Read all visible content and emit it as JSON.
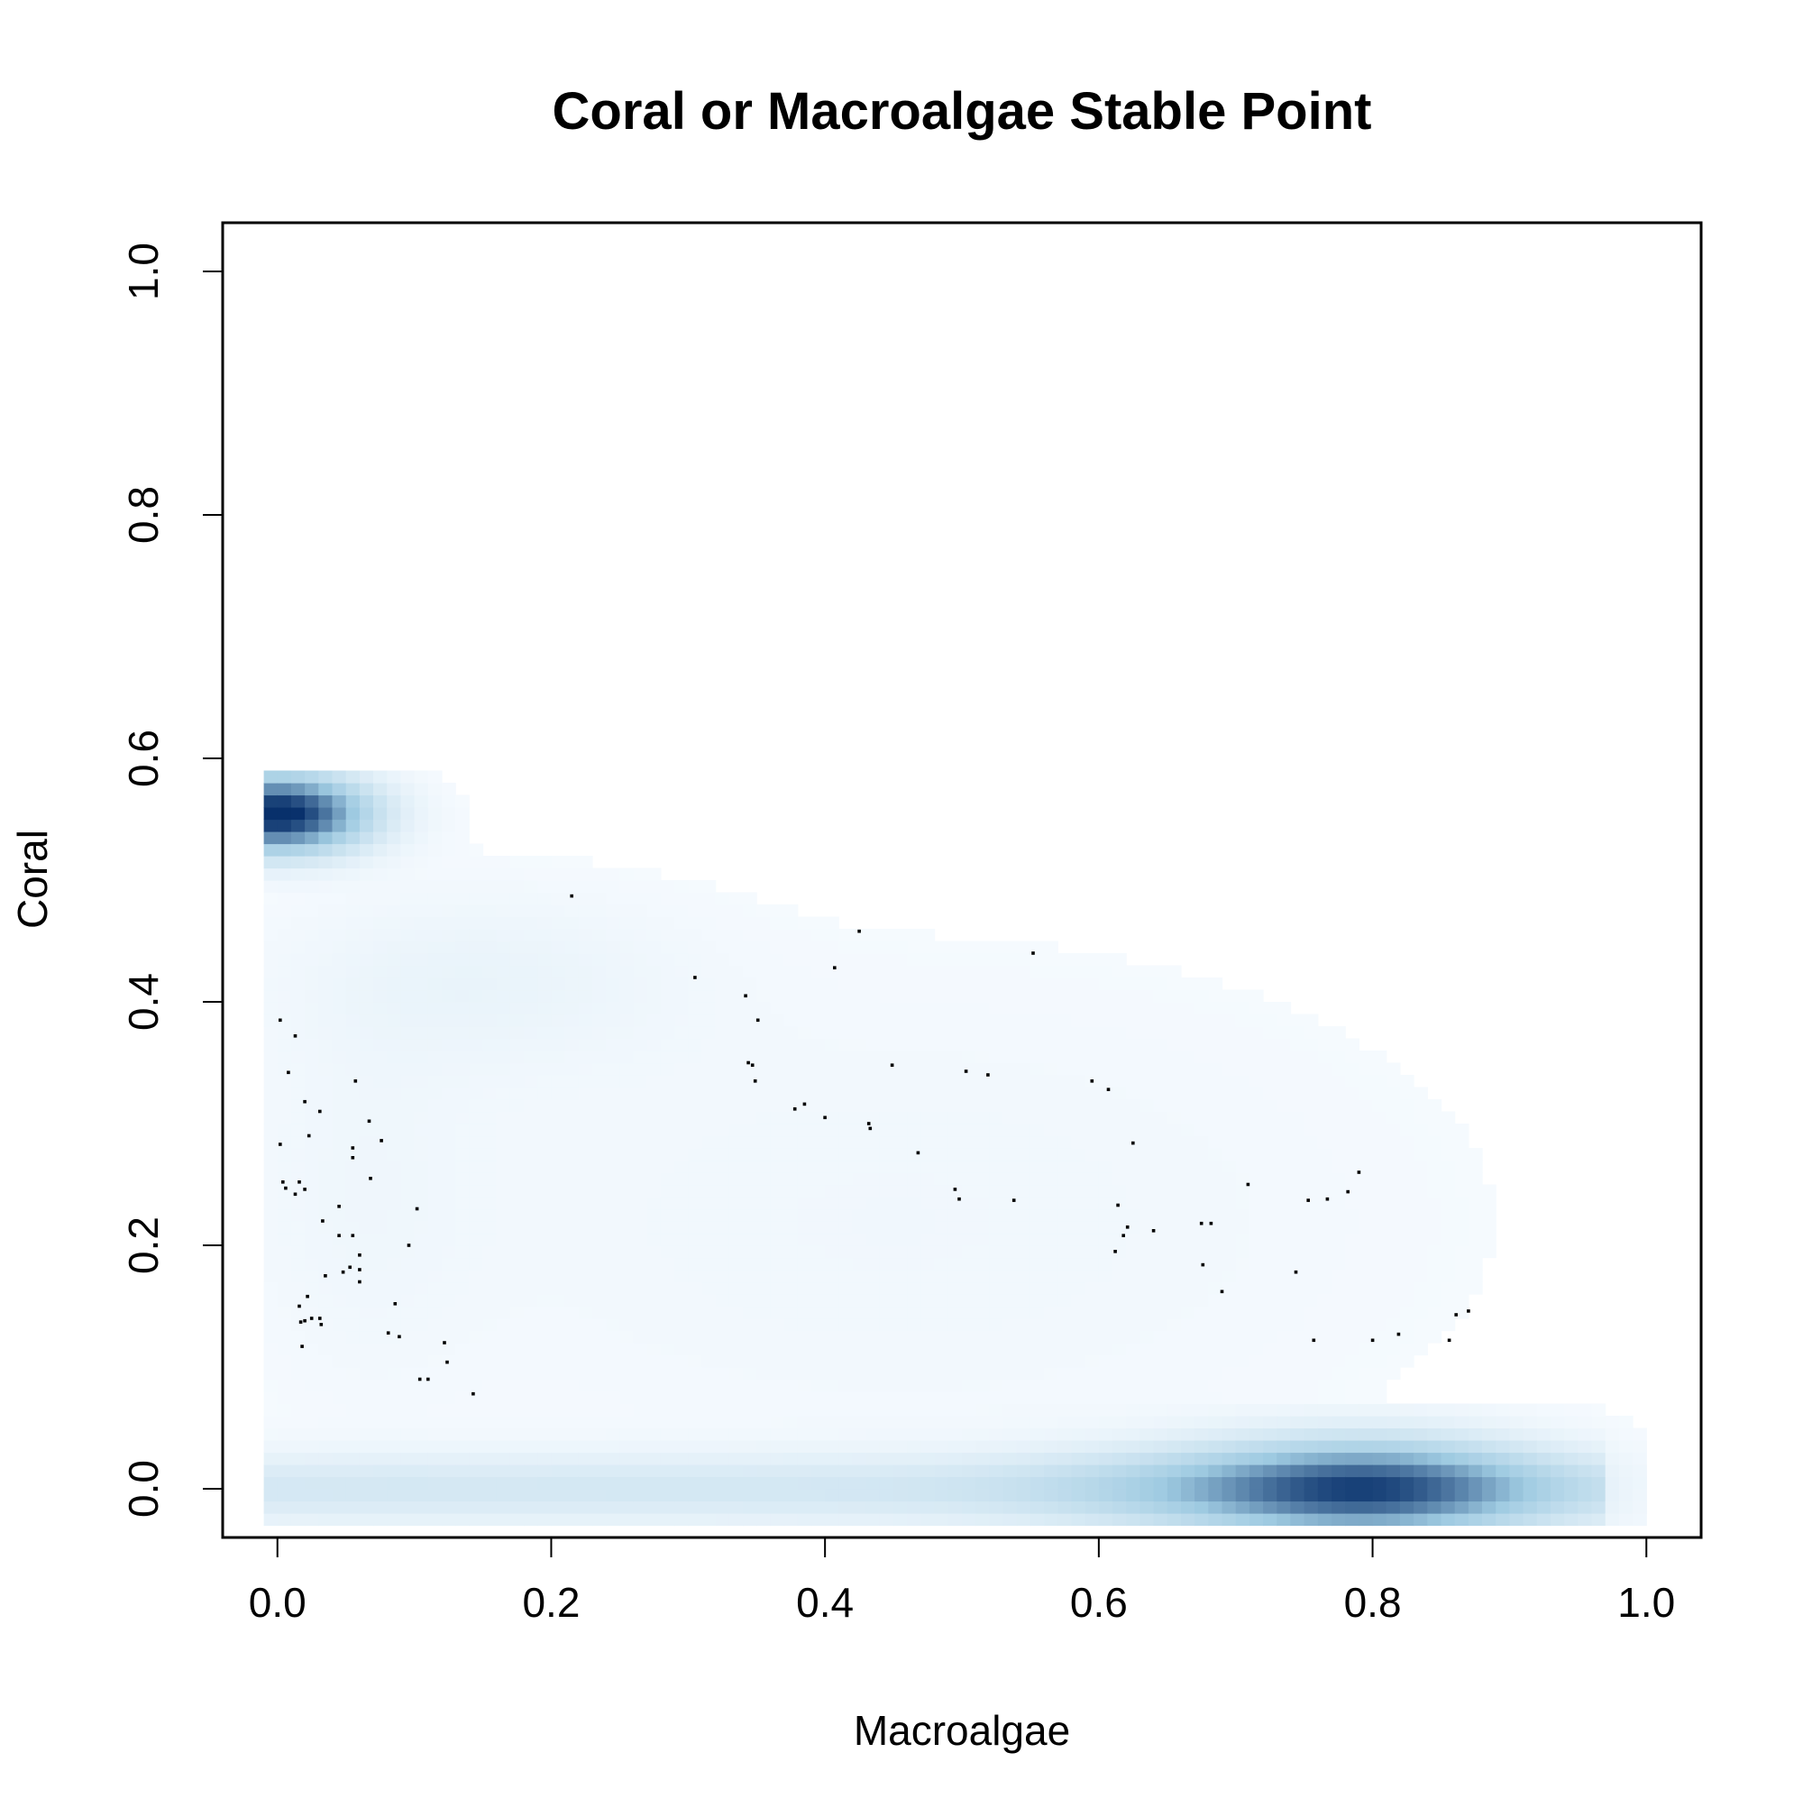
{
  "chart_data": {
    "type": "scatter",
    "title": "Coral or Macroalgae Stable Point",
    "xlabel": "Macroalgae",
    "ylabel": "Coral",
    "xlim": [
      -0.04,
      1.04
    ],
    "ylim": [
      -0.04,
      1.04
    ],
    "xticks": [
      0.0,
      0.2,
      0.4,
      0.6,
      0.8,
      1.0
    ],
    "yticks": [
      0.0,
      0.2,
      0.4,
      0.6,
      0.8,
      1.0
    ],
    "xtick_labels": [
      "0.0",
      "0.2",
      "0.4",
      "0.6",
      "0.8",
      "1.0"
    ],
    "ytick_labels": [
      "0.0",
      "0.2",
      "0.4",
      "0.6",
      "0.8",
      "1.0"
    ],
    "grid": false,
    "legend": "none",
    "density_colors": {
      "low": "#f7fbff",
      "mid": "#9ecae1",
      "high": "#08306b"
    },
    "point_color": "#000000",
    "density_peaks": [
      {
        "x": 0.0,
        "y": 0.555,
        "weight": 1.0
      },
      {
        "x": 0.8,
        "y": 0.0,
        "weight": 0.8
      }
    ],
    "points": [
      [
        0.002,
        0.385
      ],
      [
        0.013,
        0.372
      ],
      [
        0.008,
        0.342
      ],
      [
        0.002,
        0.283
      ],
      [
        0.004,
        0.252
      ],
      [
        0.006,
        0.247
      ],
      [
        0.013,
        0.242
      ],
      [
        0.016,
        0.252
      ],
      [
        0.02,
        0.246
      ],
      [
        0.023,
        0.29
      ],
      [
        0.02,
        0.318
      ],
      [
        0.031,
        0.31
      ],
      [
        0.016,
        0.15
      ],
      [
        0.017,
        0.137
      ],
      [
        0.02,
        0.138
      ],
      [
        0.022,
        0.158
      ],
      [
        0.025,
        0.14
      ],
      [
        0.018,
        0.117
      ],
      [
        0.031,
        0.14
      ],
      [
        0.032,
        0.135
      ],
      [
        0.033,
        0.22
      ],
      [
        0.035,
        0.175
      ],
      [
        0.045,
        0.232
      ],
      [
        0.045,
        0.208
      ],
      [
        0.048,
        0.178
      ],
      [
        0.055,
        0.208
      ],
      [
        0.053,
        0.182
      ],
      [
        0.055,
        0.28
      ],
      [
        0.055,
        0.272
      ],
      [
        0.057,
        0.335
      ],
      [
        0.06,
        0.192
      ],
      [
        0.06,
        0.18
      ],
      [
        0.06,
        0.17
      ],
      [
        0.067,
        0.302
      ],
      [
        0.068,
        0.255
      ],
      [
        0.076,
        0.286
      ],
      [
        0.081,
        0.128
      ],
      [
        0.086,
        0.152
      ],
      [
        0.089,
        0.125
      ],
      [
        0.096,
        0.2
      ],
      [
        0.102,
        0.23
      ],
      [
        0.104,
        0.09
      ],
      [
        0.11,
        0.09
      ],
      [
        0.122,
        0.12
      ],
      [
        0.124,
        0.104
      ],
      [
        0.143,
        0.078
      ],
      [
        0.215,
        0.487
      ],
      [
        0.305,
        0.42
      ],
      [
        0.342,
        0.405
      ],
      [
        0.344,
        0.35
      ],
      [
        0.347,
        0.348
      ],
      [
        0.349,
        0.335
      ],
      [
        0.351,
        0.385
      ],
      [
        0.378,
        0.312
      ],
      [
        0.385,
        0.316
      ],
      [
        0.4,
        0.305
      ],
      [
        0.407,
        0.428
      ],
      [
        0.425,
        0.458
      ],
      [
        0.432,
        0.3
      ],
      [
        0.433,
        0.296
      ],
      [
        0.449,
        0.348
      ],
      [
        0.468,
        0.276
      ],
      [
        0.495,
        0.246
      ],
      [
        0.498,
        0.238
      ],
      [
        0.503,
        0.343
      ],
      [
        0.519,
        0.34
      ],
      [
        0.538,
        0.237
      ],
      [
        0.552,
        0.44
      ],
      [
        0.595,
        0.335
      ],
      [
        0.607,
        0.328
      ],
      [
        0.612,
        0.195
      ],
      [
        0.614,
        0.233
      ],
      [
        0.618,
        0.208
      ],
      [
        0.621,
        0.215
      ],
      [
        0.625,
        0.284
      ],
      [
        0.64,
        0.212
      ],
      [
        0.675,
        0.218
      ],
      [
        0.676,
        0.184
      ],
      [
        0.682,
        0.218
      ],
      [
        0.69,
        0.162
      ],
      [
        0.709,
        0.25
      ],
      [
        0.744,
        0.178
      ],
      [
        0.753,
        0.237
      ],
      [
        0.757,
        0.122
      ],
      [
        0.767,
        0.238
      ],
      [
        0.782,
        0.244
      ],
      [
        0.79,
        0.26
      ],
      [
        0.8,
        0.122
      ],
      [
        0.819,
        0.127
      ],
      [
        0.856,
        0.122
      ],
      [
        0.861,
        0.143
      ],
      [
        0.87,
        0.146
      ]
    ]
  }
}
